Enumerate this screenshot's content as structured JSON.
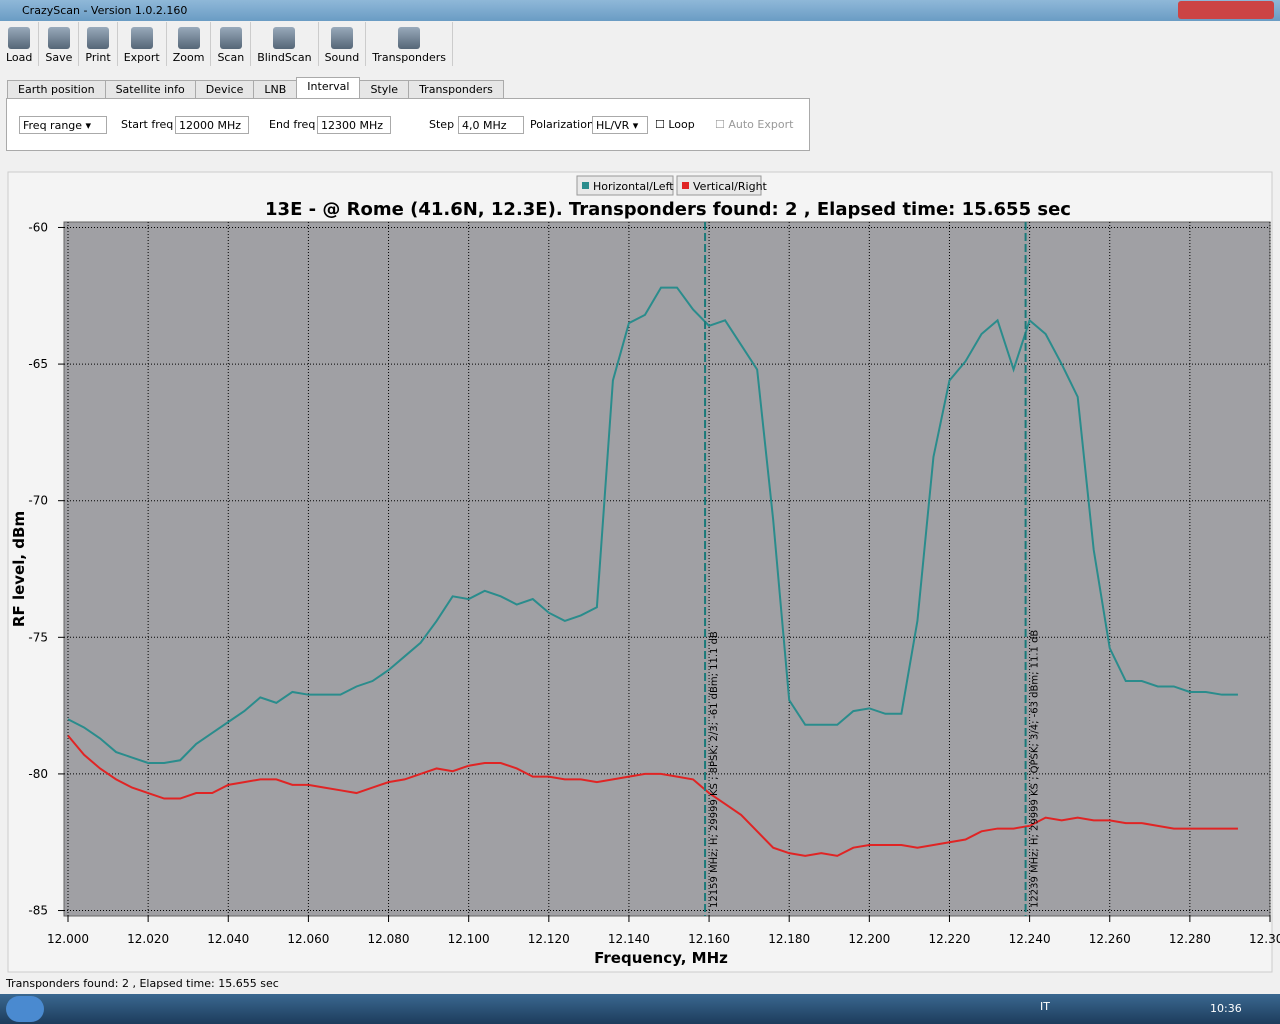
{
  "window": {
    "title": "CrazyScan - Version 1.0.2.160"
  },
  "toolbar": [
    "Load",
    "Save",
    "Print",
    "Export",
    "Zoom",
    "Scan",
    "BlindScan",
    "Sound",
    "Transponders"
  ],
  "tabs": [
    "Earth position",
    "Satellite info",
    "Device",
    "LNB",
    "Interval",
    "Style",
    "Transponders"
  ],
  "active_tab": 4,
  "interval": {
    "mode": "Freq range",
    "start_label": "Start freq",
    "start_value": "12000 MHz",
    "end_label": "End freq",
    "end_value": "12300 MHz",
    "step_label": "Step",
    "step_value": "4,0 MHz",
    "polarization_label": "Polarization",
    "polarization_value": "HL/VR",
    "loop": "Loop",
    "auto_export": "Auto Export"
  },
  "status": "Transponders found: 2 , Elapsed time: 15.655 sec",
  "taskbar": {
    "language": "IT",
    "clock": "10:36"
  },
  "chart_data": {
    "type": "line",
    "title": "13E -  @ Rome (41.6N, 12.3E). Transponders found: 2 , Elapsed time: 15.655 sec",
    "x_label": "Frequency, MHz",
    "y_label": "RF level, dBm",
    "x": [
      12.0,
      12.004,
      12.008,
      12.012,
      12.016,
      12.02,
      12.024,
      12.028,
      12.032,
      12.036,
      12.04,
      12.044,
      12.048,
      12.052,
      12.056,
      12.06,
      12.064,
      12.068,
      12.072,
      12.076,
      12.08,
      12.084,
      12.088,
      12.092,
      12.096,
      12.1,
      12.104,
      12.108,
      12.112,
      12.116,
      12.12,
      12.124,
      12.128,
      12.132,
      12.136,
      12.14,
      12.144,
      12.148,
      12.152,
      12.156,
      12.16,
      12.164,
      12.168,
      12.172,
      12.176,
      12.18,
      12.184,
      12.188,
      12.192,
      12.196,
      12.2,
      12.204,
      12.208,
      12.212,
      12.216,
      12.22,
      12.224,
      12.228,
      12.232,
      12.236,
      12.24,
      12.244,
      12.248,
      12.252,
      12.256,
      12.26,
      12.264,
      12.268,
      12.272,
      12.276,
      12.28,
      12.284,
      12.288,
      12.292
    ],
    "xlim": [
      11.999,
      12.3
    ],
    "xticks": [
      {
        "value": 12.0,
        "label": "12.000"
      },
      {
        "value": 12.02,
        "label": "12.020"
      },
      {
        "value": 12.04,
        "label": "12.040"
      },
      {
        "value": 12.06,
        "label": "12.060"
      },
      {
        "value": 12.08,
        "label": "12.080"
      },
      {
        "value": 12.1,
        "label": "12.100"
      },
      {
        "value": 12.12,
        "label": "12.120"
      },
      {
        "value": 12.14,
        "label": "12.140"
      },
      {
        "value": 12.16,
        "label": "12.160"
      },
      {
        "value": 12.18,
        "label": "12.180"
      },
      {
        "value": 12.2,
        "label": "12.200"
      },
      {
        "value": 12.22,
        "label": "12.220"
      },
      {
        "value": 12.24,
        "label": "12.240"
      },
      {
        "value": 12.26,
        "label": "12.260"
      },
      {
        "value": 12.28,
        "label": "12.280"
      },
      {
        "value": 12.3,
        "label": "12.300"
      }
    ],
    "ylim": [
      -85.2,
      -59.8
    ],
    "yticks": [
      -60,
      -65,
      -70,
      -75,
      -80,
      -85
    ],
    "grid": true,
    "legend": "top",
    "series": [
      {
        "name": "Horizontal/Left",
        "color": "#2a8c8c",
        "values": [
          -78.0,
          -78.3,
          -78.7,
          -79.2,
          -79.4,
          -79.6,
          -79.6,
          -79.5,
          -78.9,
          -78.5,
          -78.1,
          -77.7,
          -77.2,
          -77.4,
          -77.0,
          -77.1,
          -77.1,
          -77.1,
          -76.8,
          -76.6,
          -76.2,
          -75.7,
          -75.2,
          -74.4,
          -73.5,
          -73.6,
          -73.3,
          -73.5,
          -73.8,
          -73.6,
          -74.1,
          -74.4,
          -74.2,
          -73.9,
          -65.6,
          -63.5,
          -63.2,
          -62.2,
          -62.2,
          -63.0,
          -63.6,
          -63.4,
          -64.3,
          -65.2,
          -70.7,
          -77.3,
          -78.2,
          -78.2,
          -78.2,
          -77.7,
          -77.6,
          -77.8,
          -77.8,
          -74.4,
          -68.4,
          -65.6,
          -64.9,
          -63.9,
          -63.4,
          -65.2,
          -63.4,
          -63.9,
          -65.0,
          -66.2,
          -71.8,
          -75.4,
          -76.6,
          -76.6,
          -76.8,
          -76.8,
          -77.0,
          -77.0,
          -77.1,
          -77.1
        ]
      },
      {
        "name": "Vertical/Right",
        "color": "#e02424",
        "values": [
          -78.6,
          -79.3,
          -79.8,
          -80.2,
          -80.5,
          -80.7,
          -80.9,
          -80.9,
          -80.7,
          -80.7,
          -80.4,
          -80.3,
          -80.2,
          -80.2,
          -80.4,
          -80.4,
          -80.5,
          -80.6,
          -80.7,
          -80.5,
          -80.3,
          -80.2,
          -80.0,
          -79.8,
          -79.9,
          -79.7,
          -79.6,
          -79.6,
          -79.8,
          -80.1,
          -80.1,
          -80.2,
          -80.2,
          -80.3,
          -80.2,
          -80.1,
          -80.0,
          -80.0,
          -80.1,
          -80.2,
          -80.7,
          -81.1,
          -81.5,
          -82.1,
          -82.7,
          -82.9,
          -83.0,
          -82.9,
          -83.0,
          -82.7,
          -82.6,
          -82.6,
          -82.6,
          -82.7,
          -82.6,
          -82.5,
          -82.4,
          -82.1,
          -82.0,
          -82.0,
          -81.9,
          -81.6,
          -81.7,
          -81.6,
          -81.7,
          -81.7,
          -81.8,
          -81.8,
          -81.9,
          -82.0,
          -82.0,
          -82.0,
          -82.0,
          -82.0
        ]
      }
    ],
    "markers": [
      {
        "x": 12.159,
        "label": "12159 MHz; H; 29999 KS ; 8PSK; 2/3; -61 dBm; 11.1 dB"
      },
      {
        "x": 12.239,
        "label": "12239 MHz; H; 29999 KS ; QPSK; 3/4; -63 dBm; 11.1 dB"
      }
    ]
  }
}
